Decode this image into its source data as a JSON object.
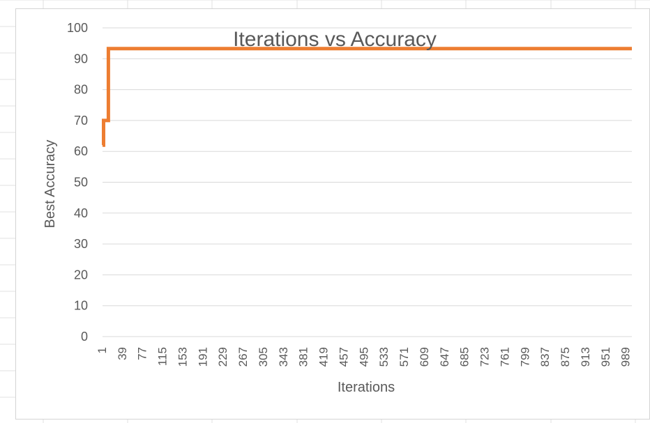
{
  "chart_data": {
    "type": "line",
    "title": "Iterations vs Accuracy",
    "xlabel": "Iterations",
    "ylabel": "Best Accuracy",
    "ylim": [
      0,
      100
    ],
    "y_ticks": [
      "0",
      "10",
      "20",
      "30",
      "40",
      "50",
      "60",
      "70",
      "80",
      "90",
      "100"
    ],
    "x_ticks": [
      "1",
      "39",
      "77",
      "115",
      "153",
      "191",
      "229",
      "267",
      "305",
      "343",
      "381",
      "419",
      "457",
      "495",
      "533",
      "571",
      "609",
      "647",
      "685",
      "723",
      "761",
      "799",
      "837",
      "875",
      "913",
      "951",
      "989"
    ],
    "xlim": [
      1,
      1000
    ],
    "grid": true,
    "legend": "none",
    "series": [
      {
        "color": "#ED7D31",
        "x": [
          1,
          3,
          3,
          12,
          12,
          1000
        ],
        "y": [
          62,
          62,
          70,
          70,
          93.3,
          93.3
        ]
      }
    ]
  }
}
